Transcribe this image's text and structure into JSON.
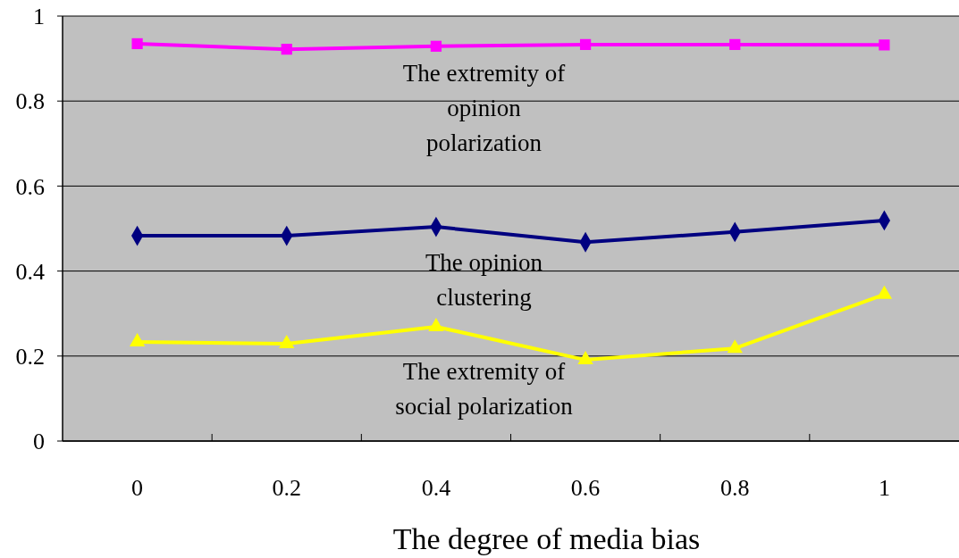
{
  "chart_data": {
    "type": "line",
    "xlabel": "The degree of media bias",
    "categories": [
      "0",
      "0.2",
      "0.4",
      "0.6",
      "0.8",
      "1"
    ],
    "ylim": [
      0,
      1
    ],
    "yticks": [
      0,
      0.2,
      0.4,
      0.6,
      0.8,
      1
    ],
    "grid": "y",
    "series": [
      {
        "name": "The extremity of opinion polarization",
        "color": "#ff00ff",
        "marker": "square",
        "values": [
          0.935,
          0.922,
          0.929,
          0.933,
          0.933,
          0.932
        ]
      },
      {
        "name": "The opinion clustering",
        "color": "#000080",
        "marker": "diamond",
        "values": [
          0.483,
          0.483,
          0.504,
          0.468,
          0.492,
          0.519
        ]
      },
      {
        "name": "The extremity of social polarization",
        "color": "#ffff00",
        "marker": "triangle",
        "values": [
          0.233,
          0.229,
          0.269,
          0.191,
          0.218,
          0.345
        ]
      }
    ]
  }
}
